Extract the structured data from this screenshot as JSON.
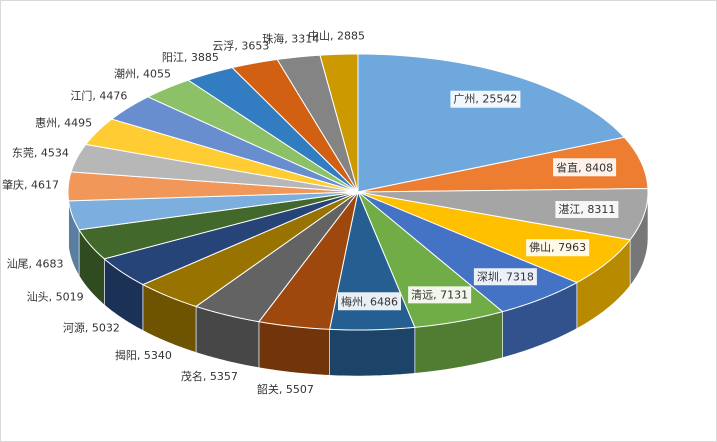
{
  "chart_data": {
    "type": "pie",
    "values": [
      25542,
      8408,
      8311,
      7963,
      7318,
      7131,
      6486,
      5507,
      5357,
      5340,
      5032,
      5019,
      4683,
      4617,
      4534,
      4495,
      4476,
      4055,
      3885,
      3653,
      3314,
      2885
    ],
    "value_labels": [
      "广州, 25542",
      "省直, 8408",
      "湛江, 8311",
      "佛山, 7963",
      "深圳, 7318",
      "清远, 7131",
      "梅州, 6486",
      "韶关, 5507",
      "茂名, 5357",
      "揭阳, 5340",
      "河源, 5032",
      "汕头, 5019",
      "汕尾, 4683",
      "肇庆, 4617",
      "东莞, 4534",
      "惠州, 4495",
      "江门, 4476",
      "潮州, 4055",
      "阳江, 3885",
      "云浮, 3653",
      "珠海, 3314",
      "中山, 2885"
    ],
    "colors": [
      "#6fa8dc",
      "#ed7d31",
      "#a5a5a5",
      "#ffc000",
      "#4472c4",
      "#70ad47",
      "#255e91",
      "#9e480e",
      "#636363",
      "#997300",
      "#264478",
      "#43682b",
      "#7cafdd",
      "#f1975a",
      "#b7b7b7",
      "#ffcd33",
      "#698ed0",
      "#8cc168",
      "#327dc2",
      "#d26012",
      "#848484",
      "#cc9a00"
    ]
  }
}
